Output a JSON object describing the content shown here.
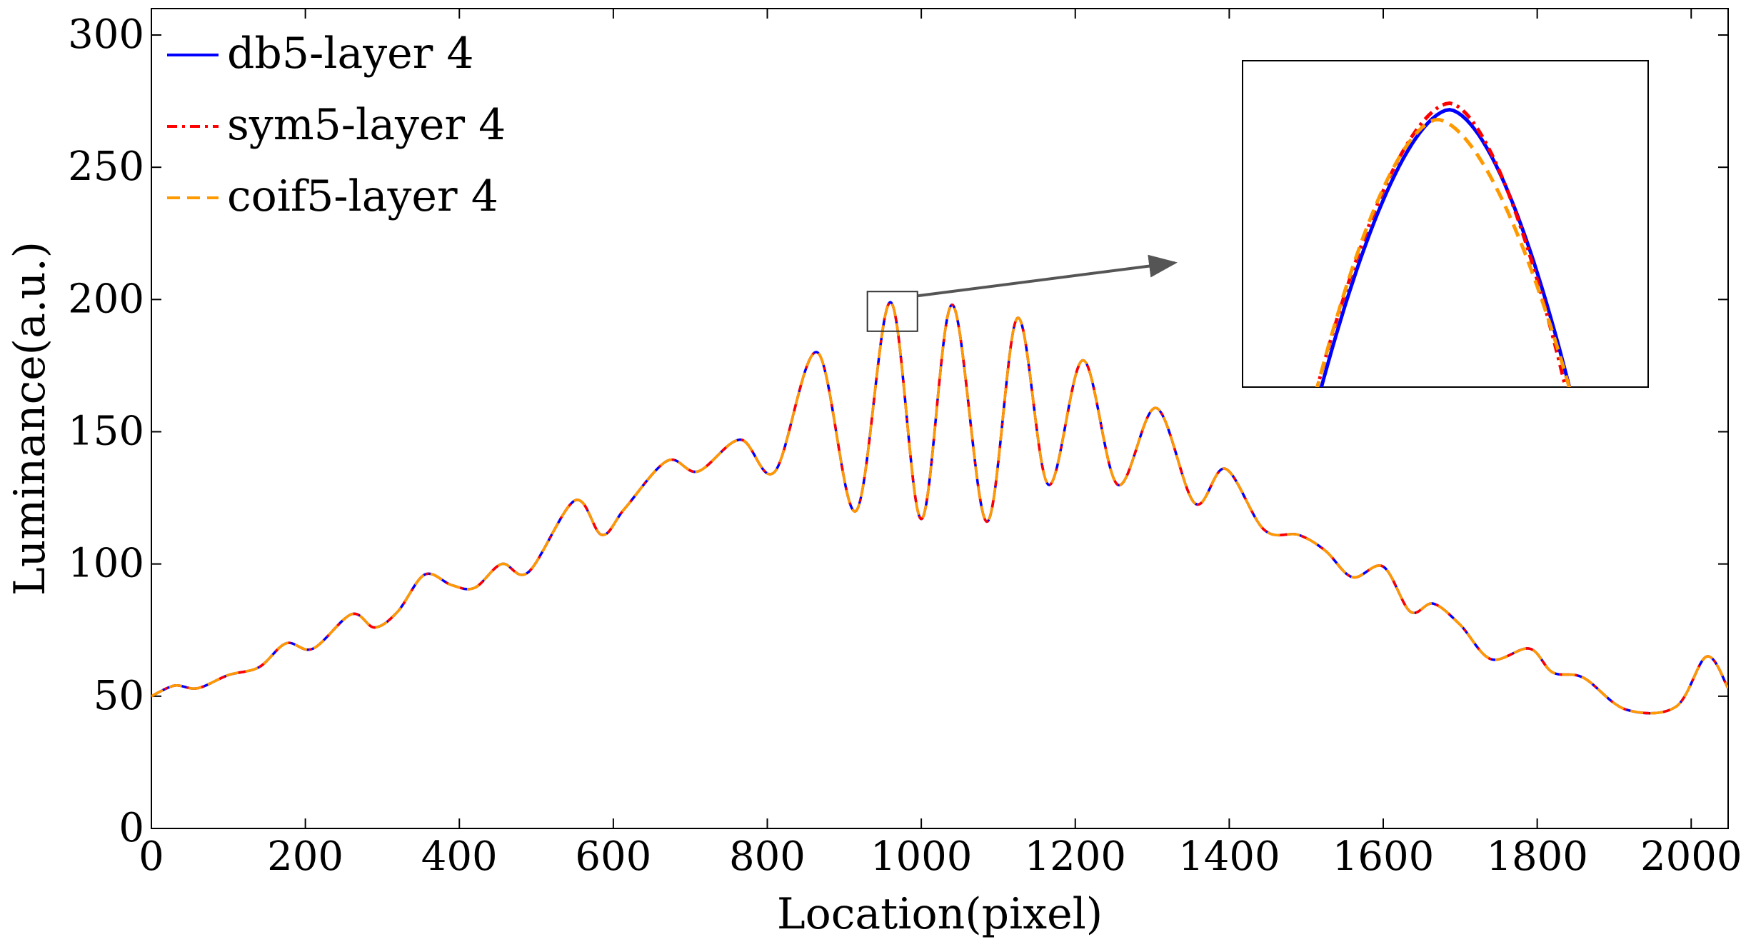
{
  "chart_data": {
    "type": "line",
    "title": "",
    "xlabel": "Location(pixel)",
    "ylabel": "Luminance(a.u.)",
    "xlim": [
      0,
      2048
    ],
    "ylim": [
      0,
      310
    ],
    "x_ticks": [
      0,
      200,
      400,
      600,
      800,
      1000,
      1200,
      1400,
      1600,
      1800,
      2000
    ],
    "y_ticks": [
      0,
      50,
      100,
      150,
      200,
      250,
      300
    ],
    "grid": false,
    "legend_position": "top-left",
    "series": [
      {
        "name": "db5-layer 4",
        "color": "#0000ff",
        "line_style": "solid"
      },
      {
        "name": "sym5-layer 4",
        "color": "#ff0000",
        "line_style": "dash-dot"
      },
      {
        "name": "coif5-layer 4",
        "color": "#ff9900",
        "line_style": "dashed"
      }
    ],
    "x": [
      0,
      30,
      60,
      100,
      140,
      175,
      210,
      260,
      290,
      320,
      355,
      390,
      420,
      455,
      490,
      550,
      585,
      615,
      670,
      710,
      765,
      810,
      865,
      915,
      960,
      1000,
      1040,
      1085,
      1125,
      1165,
      1210,
      1255,
      1305,
      1355,
      1395,
      1445,
      1490,
      1525,
      1560,
      1600,
      1635,
      1665,
      1700,
      1740,
      1790,
      1820,
      1860,
      1915,
      1980,
      2020,
      2048
    ],
    "y": [
      50,
      54,
      53,
      58,
      61,
      70,
      68,
      81,
      76,
      82,
      96,
      92,
      91,
      100,
      97,
      124,
      111,
      121,
      139,
      135,
      147,
      135,
      180,
      120,
      199,
      117,
      198,
      116,
      193,
      130,
      177,
      130,
      159,
      123,
      136,
      113,
      111,
      105,
      95,
      99,
      82,
      85,
      77,
      64,
      68,
      59,
      57,
      45,
      46,
      65,
      53
    ],
    "annotations": [
      {
        "type": "zoom-box",
        "x_range": [
          930,
          995
        ],
        "y_range": [
          188,
          203
        ]
      },
      {
        "type": "arrow",
        "to": "inset"
      },
      {
        "type": "inset",
        "shows": "zoomed peak near x=960, y=199"
      }
    ]
  }
}
